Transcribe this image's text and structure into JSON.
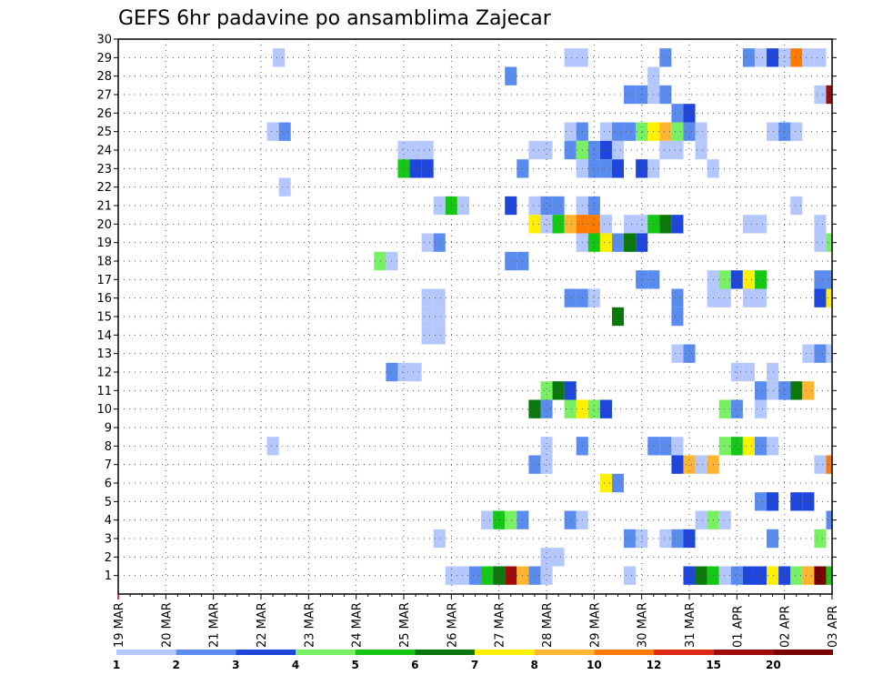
{
  "chart_data": {
    "type": "heatmap",
    "title": "GEFS 6hr padavine po ansamblima Zajecar",
    "x_tick_labels": [
      "19 MAR",
      "20 MAR",
      "21 MAR",
      "22 MAR",
      "23 MAR",
      "24 MAR",
      "25 MAR",
      "26 MAR",
      "27 MAR",
      "28 MAR",
      "29 MAR",
      "30 MAR",
      "31 MAR",
      "01 APR",
      "02 APR",
      "03 APR"
    ],
    "y_tick_labels": [
      "1",
      "2",
      "3",
      "4",
      "5",
      "6",
      "7",
      "8",
      "9",
      "10",
      "11",
      "12",
      "13",
      "14",
      "15",
      "16",
      "17",
      "18",
      "19",
      "20",
      "21",
      "22",
      "23",
      "24",
      "25",
      "26",
      "27",
      "28",
      "29",
      "30"
    ],
    "xlim": [
      0,
      60
    ],
    "ylim": [
      0,
      30
    ],
    "x_unit": "6-hour step from 19 MAR 00Z",
    "y_unit": "ensemble member",
    "grid": true,
    "legend": {
      "position": "bottom",
      "levels": [
        "1",
        "2",
        "3",
        "4",
        "5",
        "6",
        "7",
        "8",
        "10",
        "12",
        "15",
        "20"
      ],
      "colors": [
        "#b4c8ff",
        "#5a8cf0",
        "#1e46dc",
        "#78f064",
        "#14c814",
        "#0a780a",
        "#fff000",
        "#ffb432",
        "#ff7a00",
        "#dc2814",
        "#a00a0a",
        "#780000"
      ]
    },
    "cells": [
      [
        13.5,
        29,
        1
      ],
      [
        38,
        29,
        1
      ],
      [
        39,
        29,
        1
      ],
      [
        46,
        29,
        2
      ],
      [
        53,
        29,
        2
      ],
      [
        54,
        29,
        1
      ],
      [
        55,
        29,
        3
      ],
      [
        56,
        29,
        1
      ],
      [
        57,
        29,
        9
      ],
      [
        58,
        29,
        1
      ],
      [
        59,
        29,
        1
      ],
      [
        33,
        28,
        2
      ],
      [
        45,
        28,
        1
      ],
      [
        43,
        27,
        2
      ],
      [
        44,
        27,
        2
      ],
      [
        45,
        27,
        1
      ],
      [
        46,
        27,
        2
      ],
      [
        59,
        27,
        1
      ],
      [
        60,
        27,
        11
      ],
      [
        47,
        26,
        2
      ],
      [
        48,
        26,
        3
      ],
      [
        13,
        25,
        1
      ],
      [
        14,
        25,
        2
      ],
      [
        38,
        25,
        1
      ],
      [
        39,
        25,
        2
      ],
      [
        41,
        25,
        1
      ],
      [
        42,
        25,
        2
      ],
      [
        43,
        25,
        2
      ],
      [
        44,
        25,
        4
      ],
      [
        45,
        25,
        7
      ],
      [
        46,
        25,
        8
      ],
      [
        47,
        25,
        4
      ],
      [
        48,
        25,
        2
      ],
      [
        49,
        25,
        1
      ],
      [
        55,
        25,
        1
      ],
      [
        56,
        25,
        2
      ],
      [
        57,
        25,
        1
      ],
      [
        24,
        24,
        1
      ],
      [
        25,
        24,
        1
      ],
      [
        26,
        24,
        1
      ],
      [
        35,
        24,
        1
      ],
      [
        36,
        24,
        1
      ],
      [
        38,
        24,
        2
      ],
      [
        39,
        24,
        4
      ],
      [
        40,
        24,
        2
      ],
      [
        41,
        24,
        3
      ],
      [
        42,
        24,
        1
      ],
      [
        46,
        24,
        1
      ],
      [
        47,
        24,
        1
      ],
      [
        49,
        24,
        1
      ],
      [
        24,
        23,
        5
      ],
      [
        25,
        23,
        3
      ],
      [
        26,
        23,
        3
      ],
      [
        34,
        23,
        2
      ],
      [
        39,
        23,
        1
      ],
      [
        40,
        23,
        2
      ],
      [
        41,
        23,
        2
      ],
      [
        42,
        23,
        3
      ],
      [
        44,
        23,
        3
      ],
      [
        45,
        23,
        1
      ],
      [
        50,
        23,
        1
      ],
      [
        14,
        22,
        1
      ],
      [
        27,
        21,
        1
      ],
      [
        28,
        21,
        5
      ],
      [
        29,
        21,
        1
      ],
      [
        33,
        21,
        3
      ],
      [
        35,
        21,
        1
      ],
      [
        36,
        21,
        2
      ],
      [
        37,
        21,
        2
      ],
      [
        39,
        21,
        1
      ],
      [
        40,
        21,
        2
      ],
      [
        57,
        21,
        1
      ],
      [
        35,
        20,
        7
      ],
      [
        36,
        20,
        1
      ],
      [
        37,
        20,
        5
      ],
      [
        38,
        20,
        8
      ],
      [
        39,
        20,
        9
      ],
      [
        40,
        20,
        9
      ],
      [
        41,
        20,
        1
      ],
      [
        43,
        20,
        1
      ],
      [
        44,
        20,
        1
      ],
      [
        45,
        20,
        5
      ],
      [
        46,
        20,
        6
      ],
      [
        47,
        20,
        3
      ],
      [
        53,
        20,
        1
      ],
      [
        54,
        20,
        1
      ],
      [
        59,
        20,
        1
      ],
      [
        26,
        19,
        1
      ],
      [
        27,
        19,
        2
      ],
      [
        39,
        19,
        1
      ],
      [
        40,
        19,
        5
      ],
      [
        41,
        19,
        7
      ],
      [
        42,
        19,
        2
      ],
      [
        43,
        19,
        6
      ],
      [
        44,
        19,
        3
      ],
      [
        59,
        19,
        1
      ],
      [
        60,
        19,
        4
      ],
      [
        22,
        18,
        4
      ],
      [
        23,
        18,
        1
      ],
      [
        33,
        18,
        2
      ],
      [
        34,
        18,
        2
      ],
      [
        44,
        17,
        2
      ],
      [
        45,
        17,
        2
      ],
      [
        50,
        17,
        1
      ],
      [
        51,
        17,
        4
      ],
      [
        52,
        17,
        3
      ],
      [
        53,
        17,
        7
      ],
      [
        54,
        17,
        5
      ],
      [
        59,
        17,
        2
      ],
      [
        60,
        17,
        2
      ],
      [
        26,
        16,
        1
      ],
      [
        27,
        16,
        1
      ],
      [
        38,
        16,
        2
      ],
      [
        39,
        16,
        2
      ],
      [
        40,
        16,
        1
      ],
      [
        47,
        16,
        2
      ],
      [
        50,
        16,
        1
      ],
      [
        51,
        16,
        1
      ],
      [
        53,
        16,
        1
      ],
      [
        54,
        16,
        1
      ],
      [
        59,
        16,
        3
      ],
      [
        60,
        16,
        7
      ],
      [
        26,
        15,
        1
      ],
      [
        27,
        15,
        1
      ],
      [
        42,
        15,
        6
      ],
      [
        47,
        15,
        2
      ],
      [
        26,
        14,
        1
      ],
      [
        27,
        14,
        1
      ],
      [
        47,
        13,
        1
      ],
      [
        48,
        13,
        2
      ],
      [
        58,
        13,
        1
      ],
      [
        59,
        13,
        2
      ],
      [
        60,
        13,
        1
      ],
      [
        23,
        12,
        2
      ],
      [
        24,
        12,
        1
      ],
      [
        25,
        12,
        1
      ],
      [
        52,
        12,
        1
      ],
      [
        53,
        12,
        1
      ],
      [
        55,
        12,
        1
      ],
      [
        36,
        11,
        4
      ],
      [
        37,
        11,
        6
      ],
      [
        38,
        11,
        3
      ],
      [
        54,
        11,
        2
      ],
      [
        55,
        11,
        1
      ],
      [
        56,
        11,
        2
      ],
      [
        57,
        11,
        6
      ],
      [
        58,
        11,
        8
      ],
      [
        35,
        10,
        6
      ],
      [
        36,
        10,
        2
      ],
      [
        38,
        10,
        4
      ],
      [
        39,
        10,
        7
      ],
      [
        40,
        10,
        4
      ],
      [
        41,
        10,
        3
      ],
      [
        51,
        10,
        4
      ],
      [
        52,
        10,
        2
      ],
      [
        54,
        10,
        1
      ],
      [
        13,
        8,
        1
      ],
      [
        36,
        8,
        1
      ],
      [
        39,
        8,
        2
      ],
      [
        45,
        8,
        2
      ],
      [
        46,
        8,
        2
      ],
      [
        47,
        8,
        1
      ],
      [
        51,
        8,
        4
      ],
      [
        52,
        8,
        5
      ],
      [
        53,
        8,
        7
      ],
      [
        54,
        8,
        2
      ],
      [
        55,
        8,
        1
      ],
      [
        35,
        7,
        2
      ],
      [
        36,
        7,
        1
      ],
      [
        47,
        7,
        3
      ],
      [
        48,
        7,
        8
      ],
      [
        49,
        7,
        1
      ],
      [
        50,
        7,
        8
      ],
      [
        59,
        7,
        1
      ],
      [
        60,
        7,
        9
      ],
      [
        41,
        6,
        7
      ],
      [
        42,
        6,
        2
      ],
      [
        54,
        5,
        2
      ],
      [
        55,
        5,
        3
      ],
      [
        57,
        5,
        3
      ],
      [
        58,
        5,
        3
      ],
      [
        31,
        4,
        1
      ],
      [
        32,
        4,
        5
      ],
      [
        33,
        4,
        4
      ],
      [
        34,
        4,
        2
      ],
      [
        38,
        4,
        2
      ],
      [
        39,
        4,
        1
      ],
      [
        49,
        4,
        1
      ],
      [
        50,
        4,
        4
      ],
      [
        51,
        4,
        1
      ],
      [
        60,
        4,
        2
      ],
      [
        27,
        3,
        1
      ],
      [
        43,
        3,
        2
      ],
      [
        44,
        3,
        1
      ],
      [
        46,
        3,
        1
      ],
      [
        47,
        3,
        2
      ],
      [
        48,
        3,
        3
      ],
      [
        55,
        3,
        2
      ],
      [
        59,
        3,
        4
      ],
      [
        36,
        2,
        1
      ],
      [
        37,
        2,
        1
      ],
      [
        28,
        1,
        1
      ],
      [
        29,
        1,
        1
      ],
      [
        30,
        1,
        2
      ],
      [
        31,
        1,
        5
      ],
      [
        32,
        1,
        6
      ],
      [
        33,
        1,
        11
      ],
      [
        34,
        1,
        8
      ],
      [
        35,
        1,
        2
      ],
      [
        36,
        1,
        1
      ],
      [
        43,
        1,
        1
      ],
      [
        48,
        1,
        3
      ],
      [
        49,
        1,
        6
      ],
      [
        50,
        1,
        5
      ],
      [
        51,
        1,
        1
      ],
      [
        52,
        1,
        2
      ],
      [
        53,
        1,
        3
      ],
      [
        54,
        1,
        3
      ],
      [
        55,
        1,
        7
      ],
      [
        56,
        1,
        3
      ],
      [
        57,
        1,
        4
      ],
      [
        58,
        1,
        8
      ],
      [
        59,
        1,
        12
      ],
      [
        60,
        1,
        5
      ]
    ]
  }
}
